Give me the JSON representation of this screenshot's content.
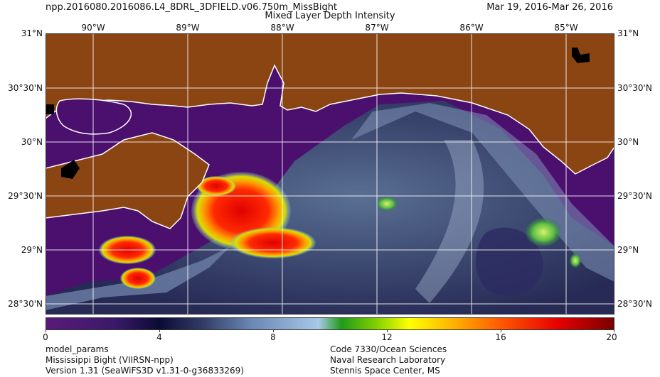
{
  "header": {
    "product": "npp.2016080.2016086.L4_8DRL_3DFIELD.v06.750m_MissBight",
    "date_range": "Mar 19, 2016-Mar 26, 2016",
    "title": "Mixed Layer Depth Intensity"
  },
  "map": {
    "lon_labels": [
      "90°W",
      "89°W",
      "88°W",
      "87°W",
      "86°W",
      "85°W"
    ],
    "lat_labels": [
      "31°N",
      "30°30'N",
      "30°N",
      "29°30'N",
      "29°N",
      "28°30'N"
    ],
    "colors": {
      "land": "#8b4513",
      "coastline": "#ffffff",
      "nodata": "#000000",
      "low": "#4b0f6e"
    }
  },
  "colorbar": {
    "ticks": [
      "0",
      "4",
      "8",
      "12",
      "16",
      "20"
    ],
    "range": [
      0,
      20
    ]
  },
  "footer": {
    "left": [
      "model_params",
      "Mississippi Bight (VIIRSN-npp)",
      "Version 1.31 (SeaWiFS3D v1.31-0-g36833269)"
    ],
    "right": [
      "Code 7330/Ocean Sciences",
      "Naval Research Laboratory",
      "Stennis Space Center, MS"
    ]
  }
}
